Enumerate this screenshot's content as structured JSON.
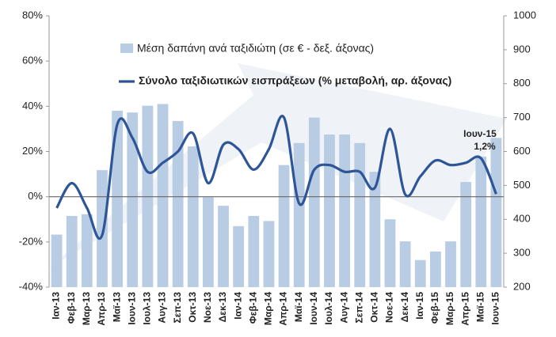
{
  "chart_data": {
    "type": "bar-line",
    "categories": [
      "Ιαν-13",
      "Φεβ-13",
      "Μαρ-13",
      "Απρ-13",
      "Μαϊ-13",
      "Ιουν-13",
      "Ιουλ-13",
      "Αυγ-13",
      "Σεπ-13",
      "Οκτ-13",
      "Νοε-13",
      "Δεκ-13",
      "Ιαν-14",
      "Φεβ-14",
      "Μαρ-14",
      "Απρ-14",
      "Μαϊ-14",
      "Ιουν-14",
      "Ιουλ-14",
      "Αυγ-14",
      "Σεπ-14",
      "Οκτ-14",
      "Νοε-14",
      "Δεκ-14",
      "Ιαν-15",
      "Φεβ-15",
      "Μαρ-15",
      "Απρ-15",
      "Μαϊ-15",
      "Ιουν-15"
    ],
    "series": [
      {
        "name": "Μέση δαπάνη ανά  ταξιδιώτη (σε € - δεξ. άξονας)",
        "color": "#b8cce4",
        "axis": "y2",
        "kind": "bar",
        "values": [
          355,
          410,
          415,
          545,
          720,
          715,
          735,
          740,
          690,
          615,
          465,
          440,
          380,
          410,
          395,
          560,
          625,
          700,
          650,
          650,
          625,
          540,
          400,
          335,
          280,
          305,
          335,
          510,
          585,
          640
        ]
      },
      {
        "name": "Σύνολο ταξιδιωτικών εισπράξεων (% μεταβολή, αρ. άξονας)",
        "color": "#2e5597",
        "kind": "line",
        "values": [
          -5,
          6,
          -5,
          -17,
          32,
          26,
          11,
          15,
          20,
          28,
          6,
          23,
          21,
          12,
          21,
          35,
          -3,
          12,
          14,
          11,
          11,
          4,
          30,
          1,
          9,
          16,
          14,
          15,
          17,
          1.2
        ]
      }
    ],
    "ylim": [
      -40,
      80
    ],
    "yticks": [
      {
        "value": -40,
        "label": "-40%"
      },
      {
        "value": -20,
        "label": "-20%"
      },
      {
        "value": 0,
        "label": "0%"
      },
      {
        "value": 20,
        "label": "20%"
      },
      {
        "value": 40,
        "label": "40%"
      },
      {
        "value": 60,
        "label": "60%"
      },
      {
        "value": 80,
        "label": "80%"
      }
    ],
    "y2lim": [
      200,
      1000
    ],
    "y2ticks": [
      200,
      300,
      400,
      500,
      600,
      700,
      800,
      900,
      1000
    ],
    "annotations": [
      {
        "text": "Ιουν-15"
      },
      {
        "text": "1,2%"
      }
    ]
  }
}
